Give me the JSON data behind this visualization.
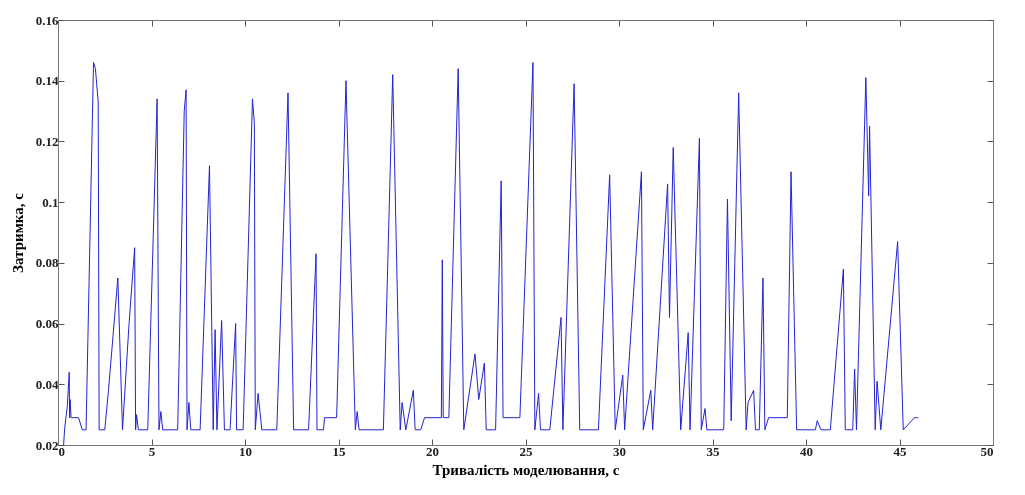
{
  "chart_data": {
    "type": "line",
    "xlabel": "Тривалість моделювання, с",
    "ylabel": "Затримка, с",
    "xlim": [
      0,
      50
    ],
    "xticks": [
      0,
      5,
      10,
      15,
      20,
      25,
      30,
      35,
      40,
      45,
      50
    ],
    "ylim": [
      0.02,
      0.16
    ],
    "yticks": [
      0.02,
      0.04,
      0.06,
      0.08,
      0.1,
      0.12,
      0.14,
      0.16
    ],
    "grid": false,
    "series": [
      {
        "color": "#2323d2",
        "x": [
          0.3,
          0.35,
          0.5,
          0.6,
          0.62,
          0.65,
          0.7,
          1.1,
          1.3,
          1.5,
          1.9,
          2.0,
          2.15,
          2.2,
          2.5,
          2.7,
          3.2,
          3.45,
          3.8,
          4.1,
          4.15,
          4.2,
          4.3,
          4.8,
          5.3,
          5.4,
          5.5,
          5.6,
          6.4,
          6.75,
          6.85,
          6.9,
          7.0,
          7.1,
          7.6,
          8.1,
          8.3,
          8.4,
          8.5,
          8.75,
          8.9,
          9.2,
          9.5,
          9.55,
          9.9,
          10.4,
          10.5,
          10.55,
          10.7,
          10.9,
          11.7,
          12.3,
          12.6,
          13.4,
          13.8,
          13.85,
          14.2,
          14.25,
          14.9,
          15.4,
          15.9,
          16.0,
          16.1,
          17.4,
          17.9,
          18.3,
          18.4,
          18.6,
          19.0,
          19.1,
          19.4,
          19.6,
          20.5,
          20.55,
          20.6,
          20.9,
          21.4,
          21.7,
          22.3,
          22.5,
          22.8,
          22.9,
          23.4,
          23.7,
          23.8,
          24.7,
          25.4,
          25.5,
          25.7,
          25.8,
          26.3,
          26.9,
          27.0,
          27.6,
          27.9,
          28.9,
          29.5,
          29.8,
          30.2,
          30.3,
          31.2,
          31.3,
          31.7,
          31.8,
          32.6,
          32.7,
          32.9,
          33.3,
          33.7,
          33.8,
          34.3,
          34.4,
          34.6,
          34.7,
          35.6,
          35.8,
          36.0,
          36.4,
          36.8,
          36.9,
          37.2,
          37.3,
          37.5,
          37.7,
          37.8,
          38.0,
          39.0,
          39.2,
          39.5,
          40.5,
          40.6,
          40.8,
          41.3,
          42.0,
          42.1,
          42.5,
          42.6,
          42.7,
          43.2,
          43.35,
          43.4,
          43.7,
          43.8,
          44.0,
          44.9,
          45.2,
          45.8,
          46.0
        ],
        "values": [
          0.02,
          0.025,
          0.033,
          0.044,
          0.029,
          0.035,
          0.029,
          0.029,
          0.025,
          0.025,
          0.146,
          0.144,
          0.133,
          0.025,
          0.025,
          0.038,
          0.075,
          0.025,
          0.06,
          0.085,
          0.025,
          0.03,
          0.025,
          0.025,
          0.134,
          0.025,
          0.031,
          0.025,
          0.025,
          0.13,
          0.137,
          0.025,
          0.034,
          0.025,
          0.025,
          0.112,
          0.025,
          0.058,
          0.025,
          0.061,
          0.025,
          0.025,
          0.06,
          0.025,
          0.025,
          0.134,
          0.126,
          0.025,
          0.037,
          0.025,
          0.025,
          0.136,
          0.025,
          0.025,
          0.083,
          0.025,
          0.025,
          0.029,
          0.029,
          0.14,
          0.025,
          0.031,
          0.025,
          0.025,
          0.142,
          0.025,
          0.034,
          0.025,
          0.038,
          0.025,
          0.025,
          0.029,
          0.029,
          0.081,
          0.029,
          0.029,
          0.144,
          0.025,
          0.05,
          0.035,
          0.047,
          0.025,
          0.025,
          0.107,
          0.029,
          0.029,
          0.146,
          0.025,
          0.037,
          0.025,
          0.025,
          0.062,
          0.025,
          0.139,
          0.025,
          0.025,
          0.109,
          0.025,
          0.043,
          0.025,
          0.11,
          0.025,
          0.038,
          0.025,
          0.106,
          0.062,
          0.118,
          0.025,
          0.057,
          0.025,
          0.121,
          0.025,
          0.032,
          0.025,
          0.025,
          0.101,
          0.028,
          0.136,
          0.025,
          0.034,
          0.038,
          0.025,
          0.025,
          0.075,
          0.025,
          0.029,
          0.029,
          0.11,
          0.025,
          0.025,
          0.028,
          0.025,
          0.025,
          0.078,
          0.025,
          0.025,
          0.045,
          0.025,
          0.141,
          0.102,
          0.125,
          0.025,
          0.041,
          0.025,
          0.087,
          0.025,
          0.029,
          0.029
        ]
      }
    ]
  }
}
